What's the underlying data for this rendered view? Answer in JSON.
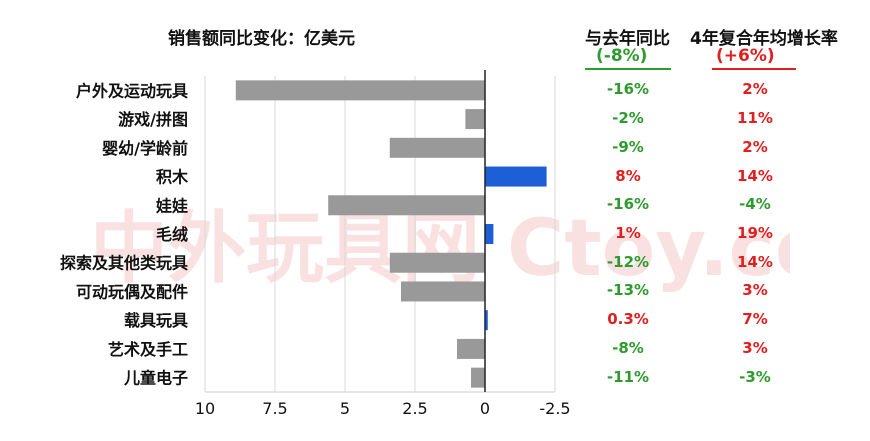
{
  "watermark_text": "中外玩具网 Ctoy.com.cn",
  "chart_data": {
    "type": "bar",
    "orientation": "horizontal",
    "title": "销售额同比变化：亿美元",
    "xlabel": "",
    "ylabel": "",
    "xlim": [
      10,
      -2.5
    ],
    "x_axis_reversed": true,
    "x_ticks": [
      "10",
      "7.5",
      "5",
      "2.5",
      "0",
      "-2.5"
    ],
    "x_tick_values": [
      10,
      7.5,
      5,
      2.5,
      0,
      -2.5
    ],
    "grid": true,
    "categories": [
      "户外及运动玩具",
      "游戏/拼图",
      "婴幼/学龄前",
      "积木",
      "娃娃",
      "毛绒",
      "探索及其他类玩具",
      "可动玩偶及配件",
      "载具玩具",
      "艺术及手工",
      "儿童电子"
    ],
    "values": [
      8.9,
      0.7,
      3.4,
      -2.2,
      5.6,
      -0.3,
      3.4,
      3.0,
      -0.1,
      1.0,
      0.5
    ],
    "bar_colors": [
      "#999999",
      "#999999",
      "#999999",
      "#1f5fd6",
      "#999999",
      "#1f5fd6",
      "#999999",
      "#999999",
      "#1f5fd6",
      "#999999",
      "#999999"
    ],
    "yoy_header": "与去年同比",
    "yoy_total": "(-8%)",
    "yoy": [
      "-16%",
      "-2%",
      "-9%",
      "8%",
      "-16%",
      "1%",
      "-12%",
      "-13%",
      "0.3%",
      "-8%",
      "-11%"
    ],
    "cagr_header": "4年复合年均增长率",
    "cagr_total": "(+6%)",
    "cagr": [
      "2%",
      "11%",
      "2%",
      "14%",
      "-4%",
      "19%",
      "14%",
      "3%",
      "7%",
      "3%",
      "-3%"
    ],
    "colors": {
      "negative": "#2e9b2e",
      "positive": "#e02020",
      "gray_bar": "#999999",
      "blue_bar": "#1f5fd6"
    }
  }
}
